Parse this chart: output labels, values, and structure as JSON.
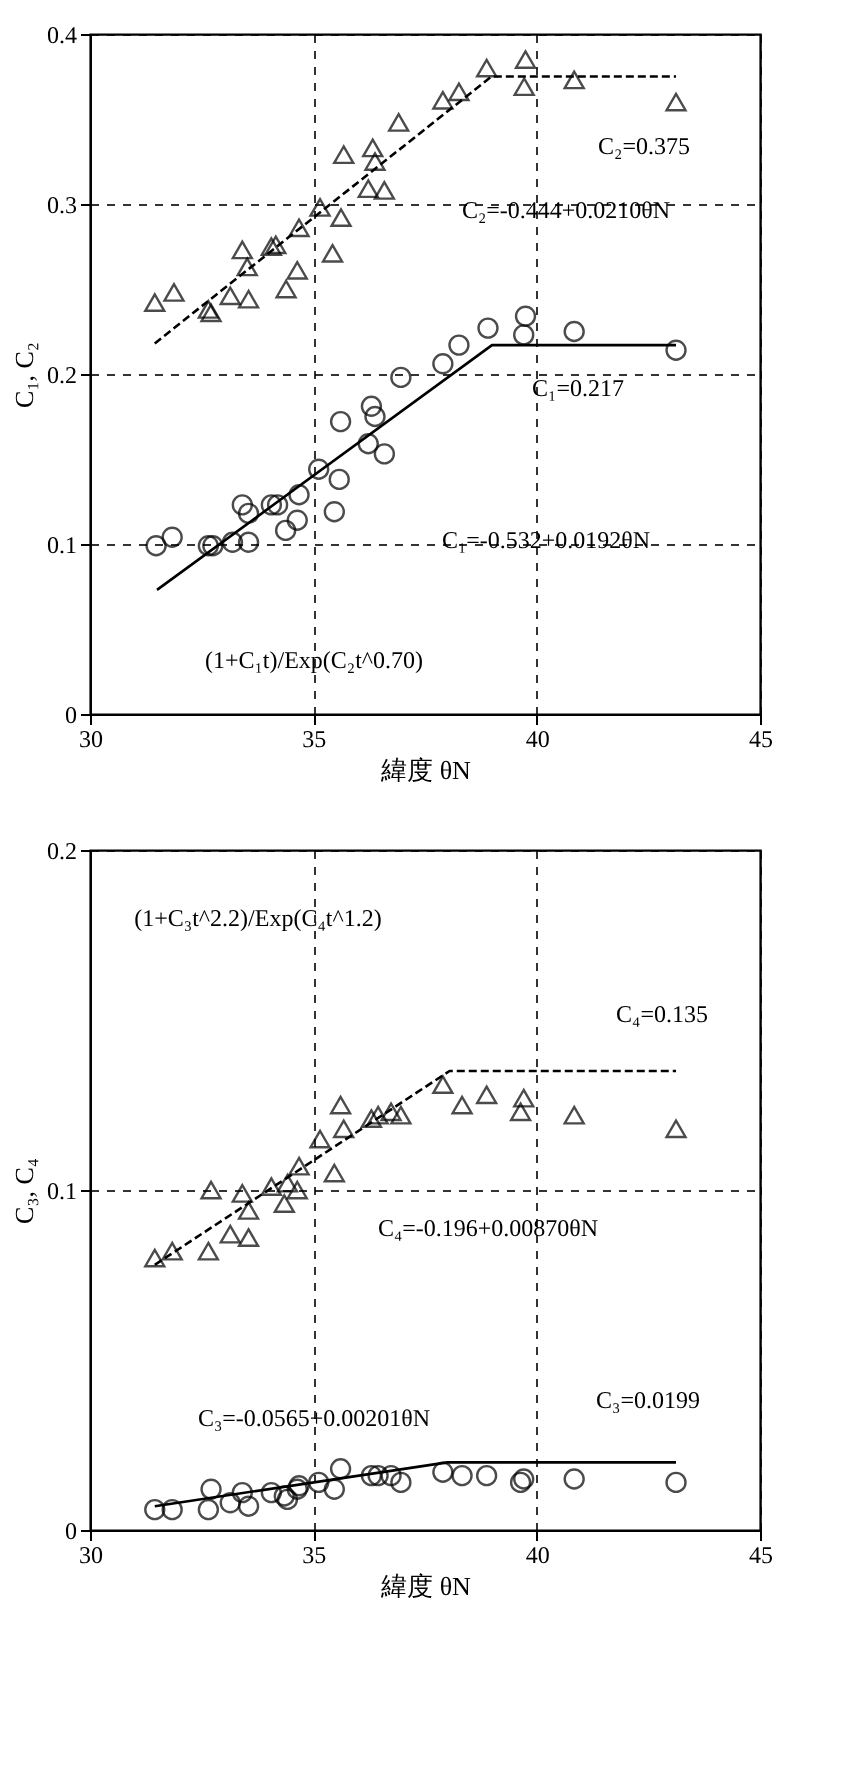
{
  "chart_data": [
    {
      "type": "scatter",
      "xlabel": "緯度  θN",
      "ylabel": "C₁, C₂",
      "xlim": [
        30,
        45
      ],
      "ylim": [
        0,
        0.4
      ],
      "xticks": [
        30,
        35,
        40,
        45
      ],
      "yticks": [
        0,
        0.1,
        0.2,
        0.3,
        0.4
      ],
      "grid": true,
      "series": [
        {
          "marker": "triangle",
          "color": "#000000",
          "x": [
            31.45,
            31.88,
            32.65,
            32.71,
            33.14,
            33.55,
            33.41,
            33.52,
            34.06,
            34.16,
            34.39,
            34.64,
            34.68,
            35.15,
            35.43,
            35.62,
            35.68,
            36.33,
            36.38,
            36.23,
            36.59,
            36.91,
            37.9,
            38.26,
            38.88,
            39.75,
            39.72,
            40.84,
            43.12
          ],
          "values": [
            0.242,
            0.248,
            0.238,
            0.236,
            0.246,
            0.244,
            0.273,
            0.263,
            0.275,
            0.276,
            0.25,
            0.261,
            0.286,
            0.298,
            0.271,
            0.292,
            0.329,
            0.333,
            0.325,
            0.309,
            0.308,
            0.348,
            0.361,
            0.366,
            0.38,
            0.385,
            0.369,
            0.373,
            0.36
          ]
        },
        {
          "marker": "circle",
          "color": "#000000",
          "x": [
            31.48,
            31.84,
            32.65,
            32.75,
            33.19,
            33.55,
            33.41,
            33.55,
            34.06,
            34.2,
            34.38,
            34.64,
            34.68,
            35.12,
            35.58,
            35.47,
            35.61,
            36.3,
            36.38,
            36.23,
            36.59,
            36.96,
            37.9,
            38.26,
            38.91,
            39.75,
            39.71,
            40.84,
            43.12
          ],
          "values": [
            0.099,
            0.104,
            0.099,
            0.099,
            0.101,
            0.101,
            0.123,
            0.118,
            0.123,
            0.123,
            0.108,
            0.114,
            0.129,
            0.144,
            0.138,
            0.119,
            0.172,
            0.181,
            0.175,
            0.159,
            0.153,
            0.198,
            0.206,
            0.217,
            0.227,
            0.234,
            0.223,
            0.225,
            0.214
          ]
        },
        {
          "type": "line",
          "line_style": "dashed",
          "color": "#000000",
          "x": [
            31.45,
            38.99,
            43.12
          ],
          "values": [
            0.218,
            0.375,
            0.375
          ]
        },
        {
          "type": "line",
          "line_style": "solid",
          "color": "#000000",
          "x": [
            31.5,
            39.0,
            43.12
          ],
          "values": [
            0.073,
            0.217,
            0.217
          ]
        }
      ],
      "annotations": [
        "C₂=0.375",
        "C₂=-0.444+0.0210θN",
        "C₁=0.217",
        "C₁=-0.532+0.0192θN",
        "(1+C₁t)/Exp(C₂t^0.70)"
      ]
    },
    {
      "type": "scatter",
      "xlabel": "緯度  θN",
      "ylabel": "C₃, C₄",
      "xlim": [
        30,
        45
      ],
      "ylim": [
        0,
        0.2
      ],
      "xticks": [
        30,
        35,
        40,
        45
      ],
      "yticks": [
        0,
        0.1,
        0.2
      ],
      "grid": true,
      "series": [
        {
          "marker": "triangle",
          "color": "#000000",
          "x": [
            31.45,
            31.84,
            32.65,
            32.71,
            33.14,
            33.41,
            33.55,
            33.55,
            34.06,
            34.35,
            34.42,
            34.64,
            34.68,
            35.15,
            35.47,
            35.61,
            35.68,
            36.3,
            36.45,
            36.74,
            36.96,
            37.9,
            38.33,
            38.88,
            39.71,
            39.64,
            40.84,
            43.12
          ],
          "values": [
            0.08,
            0.082,
            0.082,
            0.1,
            0.087,
            0.099,
            0.094,
            0.086,
            0.101,
            0.096,
            0.102,
            0.1,
            0.107,
            0.115,
            0.105,
            0.125,
            0.118,
            0.121,
            0.122,
            0.123,
            0.122,
            0.131,
            0.125,
            0.128,
            0.127,
            0.123,
            0.122,
            0.118
          ]
        },
        {
          "marker": "circle",
          "color": "#000000",
          "x": [
            31.45,
            31.84,
            32.65,
            32.71,
            33.14,
            33.41,
            33.55,
            34.06,
            34.35,
            34.42,
            34.64,
            34.68,
            35.12,
            35.47,
            35.61,
            36.3,
            36.45,
            36.74,
            36.96,
            37.9,
            38.33,
            38.88,
            39.71,
            39.64,
            40.84,
            43.12
          ],
          "values": [
            0.006,
            0.006,
            0.006,
            0.012,
            0.008,
            0.011,
            0.007,
            0.011,
            0.01,
            0.009,
            0.012,
            0.013,
            0.014,
            0.012,
            0.018,
            0.016,
            0.016,
            0.016,
            0.014,
            0.017,
            0.016,
            0.016,
            0.015,
            0.014,
            0.015,
            0.014
          ]
        },
        {
          "type": "line",
          "line_style": "dashed",
          "color": "#000000",
          "x": [
            31.45,
            38.05,
            43.12
          ],
          "values": [
            0.078,
            0.135,
            0.135
          ]
        },
        {
          "type": "line",
          "line_style": "solid",
          "color": "#000000",
          "x": [
            31.45,
            38.0,
            43.12
          ],
          "values": [
            0.007,
            0.0199,
            0.0199
          ]
        }
      ],
      "annotations": [
        "(1+C₃t^2.2)/Exp(C₄t^1.2)",
        "C₄=0.135",
        "C₄=-0.196+0.00870θN",
        "C₃=-0.0565+0.00201θN",
        "C₃=0.0199"
      ]
    }
  ]
}
